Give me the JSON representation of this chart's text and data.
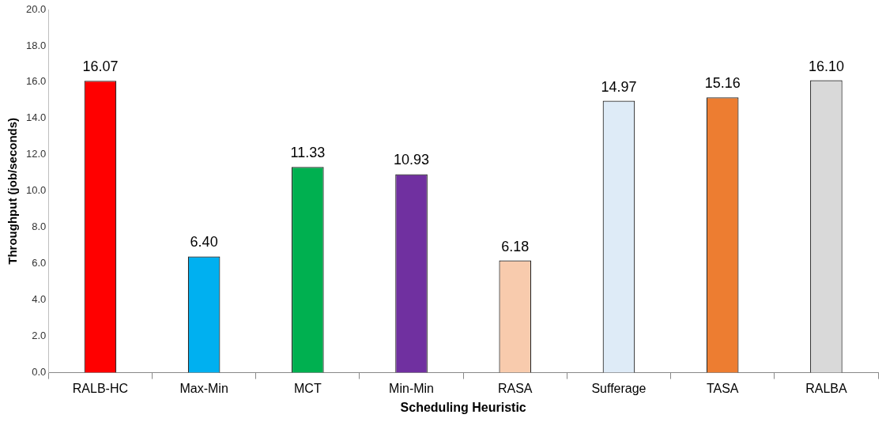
{
  "chart_data": {
    "type": "bar",
    "xlabel": "Scheduling Heuristic",
    "ylabel": "Throughput (job/seconds)",
    "categories": [
      "RALB-HC",
      "Max-Min",
      "MCT",
      "Min-Min",
      "RASA",
      "Sufferage",
      "TASA",
      "RALBA"
    ],
    "values": [
      16.07,
      6.4,
      11.33,
      10.93,
      6.18,
      14.97,
      15.16,
      16.1
    ],
    "value_labels": [
      "16.07",
      "6.40",
      "11.33",
      "10.93",
      "6.18",
      "14.97",
      "15.16",
      "16.10"
    ],
    "colors": [
      "#ff0000",
      "#00b0f0",
      "#00b050",
      "#7030a0",
      "#f8cbad",
      "#deebf7",
      "#ed7d31",
      "#d9d9d9"
    ],
    "ylim": [
      0,
      20
    ],
    "yticks": [
      {
        "value": 0,
        "label": "0.0"
      },
      {
        "value": 2,
        "label": "2.0"
      },
      {
        "value": 4,
        "label": "4.0"
      },
      {
        "value": 6,
        "label": "6.0"
      },
      {
        "value": 8,
        "label": "8.0"
      },
      {
        "value": 10,
        "label": "10.0"
      },
      {
        "value": 12,
        "label": "12.0"
      },
      {
        "value": 14,
        "label": "14.0"
      },
      {
        "value": 16,
        "label": "16.0"
      },
      {
        "value": 18,
        "label": "18.0"
      },
      {
        "value": 20,
        "label": "20.0"
      }
    ],
    "grid": false,
    "legend": false
  }
}
